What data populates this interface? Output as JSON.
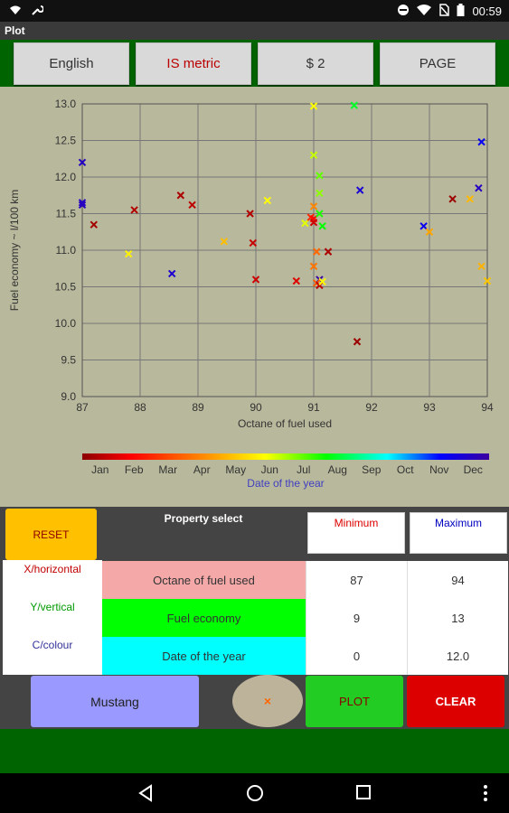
{
  "status": {
    "time": "00:59"
  },
  "app": {
    "title": "Plot"
  },
  "toolbar": {
    "language": "English",
    "units": "IS metric",
    "price": "$ 2",
    "page": "PAGE"
  },
  "colors": {
    "plot_bg": "#b8b89c",
    "toolbar_green": "#006400",
    "reset": "#ffc000",
    "plot_btn": "#22cc22",
    "clear_btn": "#dd0000",
    "car_btn": "#9999ff"
  },
  "chart_data": {
    "type": "scatter",
    "xlabel": "Octane of fuel used",
    "ylabel": "Fuel economy ~ l/100 km",
    "xlim": [
      87,
      94
    ],
    "ylim": [
      9.0,
      13.0
    ],
    "x_ticks": [
      "87",
      "88",
      "89",
      "90",
      "91",
      "92",
      "93",
      "94"
    ],
    "y_ticks": [
      "9.0",
      "9.5",
      "10.0",
      "10.5",
      "11.0",
      "11.5",
      "12.0",
      "12.5",
      "13.0"
    ],
    "grid": true,
    "colorbar": {
      "label": "Date of the year",
      "months": [
        "Jan",
        "Feb",
        "Mar",
        "Apr",
        "May",
        "Jun",
        "Jul",
        "Aug",
        "Sep",
        "Oct",
        "Nov",
        "Dec"
      ]
    },
    "points": [
      {
        "x": 87.0,
        "y": 12.2,
        "c": 11.5
      },
      {
        "x": 87.0,
        "y": 11.65,
        "c": 11.4
      },
      {
        "x": 87.0,
        "y": 11.62,
        "c": 11.6
      },
      {
        "x": 87.2,
        "y": 11.35,
        "c": 0.3
      },
      {
        "x": 87.8,
        "y": 10.95,
        "c": 5.2
      },
      {
        "x": 87.9,
        "y": 11.55,
        "c": 0.5
      },
      {
        "x": 88.55,
        "y": 10.68,
        "c": 11.3
      },
      {
        "x": 88.7,
        "y": 11.75,
        "c": 0.4
      },
      {
        "x": 88.9,
        "y": 11.62,
        "c": 0.6
      },
      {
        "x": 89.45,
        "y": 11.12,
        "c": 4.4
      },
      {
        "x": 89.9,
        "y": 11.5,
        "c": 0.5
      },
      {
        "x": 89.95,
        "y": 11.1,
        "c": 0.7
      },
      {
        "x": 90.0,
        "y": 10.6,
        "c": 0.8
      },
      {
        "x": 90.2,
        "y": 11.68,
        "c": 5.4
      },
      {
        "x": 90.7,
        "y": 10.58,
        "c": 1.0
      },
      {
        "x": 90.85,
        "y": 11.37,
        "c": 5.6
      },
      {
        "x": 90.95,
        "y": 11.45,
        "c": 2.0
      },
      {
        "x": 91.0,
        "y": 12.97,
        "c": 5.4
      },
      {
        "x": 91.0,
        "y": 12.3,
        "c": 5.8
      },
      {
        "x": 91.0,
        "y": 11.6,
        "c": 3.5
      },
      {
        "x": 91.0,
        "y": 11.43,
        "c": 1.5
      },
      {
        "x": 91.0,
        "y": 11.38,
        "c": 0.8
      },
      {
        "x": 91.0,
        "y": 10.78,
        "c": 3.2
      },
      {
        "x": 91.05,
        "y": 10.98,
        "c": 3.0
      },
      {
        "x": 91.1,
        "y": 12.02,
        "c": 6.5
      },
      {
        "x": 91.1,
        "y": 11.78,
        "c": 6.2
      },
      {
        "x": 91.1,
        "y": 11.5,
        "c": 7.0
      },
      {
        "x": 91.1,
        "y": 10.6,
        "c": 11.9
      },
      {
        "x": 91.05,
        "y": 10.55,
        "c": 2.8
      },
      {
        "x": 91.1,
        "y": 10.52,
        "c": 0.6
      },
      {
        "x": 91.15,
        "y": 10.57,
        "c": 5.3
      },
      {
        "x": 91.15,
        "y": 11.33,
        "c": 7.2
      },
      {
        "x": 91.25,
        "y": 10.98,
        "c": 0.4
      },
      {
        "x": 91.7,
        "y": 12.98,
        "c": 7.5
      },
      {
        "x": 91.75,
        "y": 9.75,
        "c": 0.2
      },
      {
        "x": 91.8,
        "y": 11.82,
        "c": 11.2
      },
      {
        "x": 92.9,
        "y": 11.33,
        "c": 10.8
      },
      {
        "x": 93.0,
        "y": 11.25,
        "c": 4.0
      },
      {
        "x": 93.4,
        "y": 11.7,
        "c": 0.2
      },
      {
        "x": 93.7,
        "y": 11.7,
        "c": 4.3
      },
      {
        "x": 93.85,
        "y": 11.85,
        "c": 11.5
      },
      {
        "x": 93.9,
        "y": 12.48,
        "c": 10.8
      },
      {
        "x": 93.9,
        "y": 10.78,
        "c": 4.2
      },
      {
        "x": 94.0,
        "y": 10.58,
        "c": 4.5
      }
    ]
  },
  "panel": {
    "reset": "RESET",
    "property_select": "Property select",
    "minimum": "Minimum",
    "maximum": "Maximum",
    "roles": {
      "x": "X/horizontal",
      "y": "Y/vertical",
      "c": "C/colour"
    },
    "rows": [
      {
        "property": "Octane of fuel used",
        "min": "87",
        "max": "94",
        "color": "#f4a8a8"
      },
      {
        "property": "Fuel economy",
        "min": "9",
        "max": "13",
        "color": "#00ff00"
      },
      {
        "property": "Date of the year",
        "min": "0",
        "max": "12.0",
        "color": "#00ffff"
      }
    ],
    "car": "Mustang",
    "marker": "×",
    "plot": "PLOT",
    "clear": "CLEAR"
  }
}
